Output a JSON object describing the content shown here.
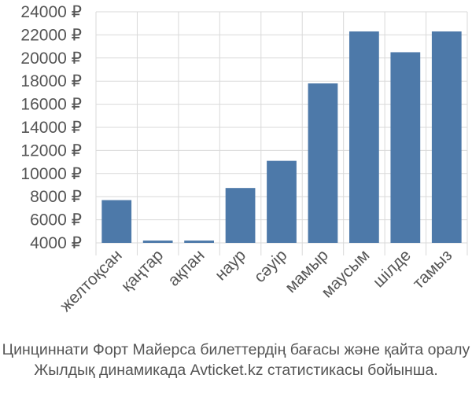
{
  "chart_data": {
    "type": "bar",
    "categories": [
      "желтоқсан",
      "қаңтар",
      "ақпан",
      "наур",
      "сәуір",
      "мамыр",
      "маусым",
      "шілде",
      "тамыз"
    ],
    "values": [
      7700,
      4200,
      4200,
      8750,
      11100,
      17800,
      22300,
      20500,
      22300
    ],
    "ylim": [
      4000,
      24000
    ],
    "yticks": [
      4000,
      6000,
      8000,
      10000,
      12000,
      14000,
      16000,
      18000,
      20000,
      22000,
      24000
    ],
    "ytick_suffix": " ₽",
    "bar_color": "#4d79a9",
    "grid": true
  },
  "caption": {
    "line1": "Цинциннати Форт Майерса билеттердің бағасы және қайта оралу",
    "line2": "Жылдық динамикада Avticket.kz статистикасы бойынша."
  }
}
